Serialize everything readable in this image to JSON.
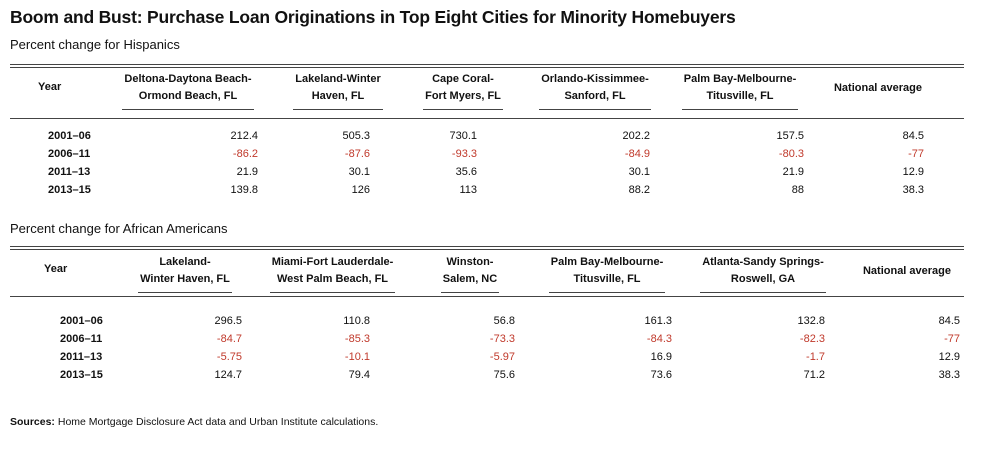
{
  "title": "Boom and Bust: Purchase Loan Originations in Top Eight Cities for Minority Homebuyers",
  "sources_label": "Sources:",
  "sources_text": " Home Mortgage Disclosure Act data and Urban Institute calculations.",
  "tables": [
    {
      "subtitle": "Percent change for Hispanics",
      "year_header": "Year",
      "columns": [
        {
          "line1": "Deltona-Daytona Beach-",
          "line2": "Ormond Beach, FL"
        },
        {
          "line1": "Lakeland-Winter",
          "line2": "Haven, FL"
        },
        {
          "line1": "Cape Coral-",
          "line2": "Fort Myers, FL"
        },
        {
          "line1": "Orlando-Kissimmee-",
          "line2": "Sanford, FL"
        },
        {
          "line1": "Palm Bay-Melbourne-",
          "line2": "Titusville, FL"
        },
        {
          "line1": "National average",
          "line2": ""
        }
      ],
      "rows": [
        {
          "year": "2001–06",
          "values": [
            "212.4",
            "505.3",
            "730.1",
            "202.2",
            "157.5",
            "84.5"
          ]
        },
        {
          "year": "2006–11",
          "values": [
            "-86.2",
            "-87.6",
            "-93.3",
            "-84.9",
            "-80.3",
            "-77"
          ]
        },
        {
          "year": "2011–13",
          "values": [
            "21.9",
            "30.1",
            "35.6",
            "30.1",
            "21.9",
            "12.9"
          ]
        },
        {
          "year": "2013–15",
          "values": [
            "139.8",
            "126",
            "113",
            "88.2",
            "88",
            "38.3"
          ]
        }
      ]
    },
    {
      "subtitle": "Percent change for African Americans",
      "year_header": "Year",
      "columns": [
        {
          "line1": "Lakeland-",
          "line2": "Winter Haven, FL"
        },
        {
          "line1": "Miami-Fort Lauderdale-",
          "line2": "West Palm Beach, FL"
        },
        {
          "line1": "Winston-",
          "line2": "Salem, NC"
        },
        {
          "line1": "Palm Bay-Melbourne-",
          "line2": "Titusville, FL"
        },
        {
          "line1": "Atlanta-Sandy Springs-",
          "line2": "Roswell, GA"
        },
        {
          "line1": "National average",
          "line2": ""
        }
      ],
      "rows": [
        {
          "year": "2001–06",
          "values": [
            "296.5",
            "110.8",
            "56.8",
            "161.3",
            "132.8",
            "84.5"
          ]
        },
        {
          "year": "2006–11",
          "values": [
            "-84.7",
            "-85.3",
            "-73.3",
            "-84.3",
            "-82.3",
            "-77"
          ]
        },
        {
          "year": "2011–13",
          "values": [
            "-5.75",
            "-10.1",
            "-5.97",
            "16.9",
            "-1.7",
            "12.9"
          ]
        },
        {
          "year": "2013–15",
          "values": [
            "124.7",
            "79.4",
            "75.6",
            "73.6",
            "71.2",
            "38.3"
          ]
        }
      ]
    }
  ]
}
